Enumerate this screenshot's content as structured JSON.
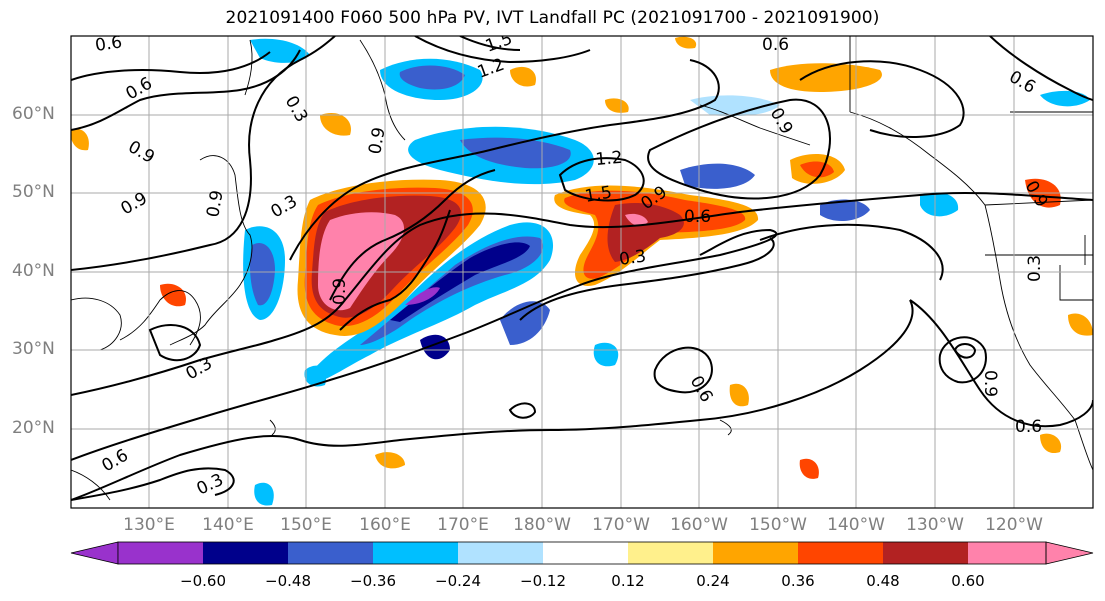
{
  "title": "2021091400 F060 500 hPa PV, IVT Landfall PC (2021091700 - 2021091900)",
  "lat_labels": [
    "60°N",
    "50°N",
    "40°N",
    "30°N",
    "20°N"
  ],
  "lon_labels": [
    "130°E",
    "140°E",
    "150°E",
    "160°E",
    "170°E",
    "180°W",
    "170°W",
    "160°W",
    "150°W",
    "140°W",
    "130°W",
    "120°W"
  ],
  "colorbar": {
    "ticks": [
      "−0.60",
      "−0.48",
      "−0.36",
      "−0.24",
      "−0.12",
      "0.12",
      "0.24",
      "0.36",
      "0.48",
      "0.60"
    ],
    "colors": [
      "#9932cc",
      "#00008b",
      "#3a5fcd",
      "#00bfff",
      "#b0e2ff",
      "#ffffff",
      "#fff08c",
      "#ffa500",
      "#ff4500",
      "#b22222",
      "#ff82ab"
    ]
  },
  "contour_labels": [
    "0.6",
    "0.9",
    "1.2",
    "1.5",
    "0.3",
    "0.6",
    "0.9",
    "0.3",
    "0.9",
    "1.2",
    "1.5",
    "0.9",
    "0.6",
    "0.3",
    "0.9",
    "0.3",
    "0.6",
    "0.9",
    "0.3",
    "0.6",
    "0.3",
    "0.6",
    "0.9",
    "0.6",
    "0.9",
    "0.6",
    "0.9"
  ],
  "colors": {
    "grid": "#aaaaaa",
    "axis_label": "#7f7f7f"
  }
}
